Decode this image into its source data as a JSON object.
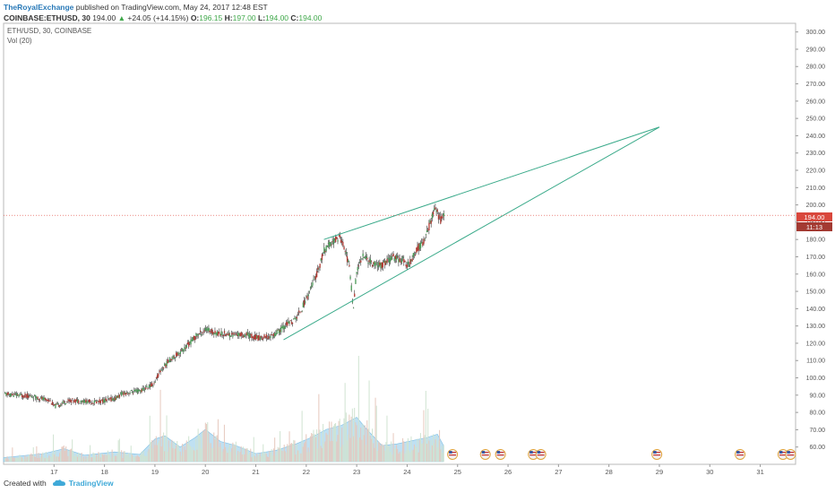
{
  "header": {
    "author": "TheRoyalExchange",
    "published_text": "published on TradingView.com, May 24, 2017 12:48 EST",
    "symbol_line": "COINBASE:ETHUSD, 30",
    "last_price": "194.00",
    "change": "+24.05 (+14.15%)",
    "open_label": "O:",
    "open": "196.15",
    "high_label": "H:",
    "high": "197.00",
    "low_label": "L:",
    "low": "194.00",
    "close_label": "C:",
    "close": "194.00"
  },
  "pane": {
    "series_label": "ETH/USD, 30, COINBASE",
    "volume_label": "Vol (20)"
  },
  "price_marker": {
    "value": "194.00",
    "countdown": "11:13"
  },
  "footer": {
    "created_with": "Created with",
    "brand": "TradingView"
  },
  "colors": {
    "up": "#4a9a55",
    "down": "#b13a33",
    "trend": "#3aaa8a",
    "volume_fill": "#a9d6ee",
    "volume_bar": "#d7b7a3",
    "price_line": "#e0453a"
  },
  "chart_data": {
    "type": "candlestick",
    "symbol": "ETH/USD",
    "interval": "30",
    "exchange": "COINBASE",
    "ylim": [
      50,
      305
    ],
    "y_ticks": [
      60,
      70,
      80,
      90,
      100,
      110,
      120,
      130,
      140,
      150,
      160,
      170,
      180,
      190,
      200,
      210,
      220,
      230,
      240,
      250,
      260,
      270,
      280,
      290,
      300
    ],
    "y_tick_labels": [
      "60.00",
      "70.00",
      "80.00",
      "90.00",
      "100.00",
      "110.00",
      "120.00",
      "130.00",
      "140.00",
      "150.00",
      "160.00",
      "170.00",
      "180.00",
      "190.00",
      "200.00",
      "210.00",
      "220.00",
      "230.00",
      "240.00",
      "250.00",
      "260.00",
      "270.00",
      "280.00",
      "290.00",
      "300.00"
    ],
    "xlim": [
      16.0,
      31.7
    ],
    "x_ticks": [
      17,
      18,
      19,
      20,
      21,
      22,
      23,
      24,
      25,
      26,
      27,
      28,
      29,
      30,
      31
    ],
    "x_tick_labels": [
      "17",
      "18",
      "19",
      "20",
      "21",
      "22",
      "23",
      "24",
      "25",
      "26",
      "27",
      "28",
      "29",
      "30",
      "31"
    ],
    "price_path": [
      [
        16.0,
        90.5
      ],
      [
        16.5,
        89.5
      ],
      [
        16.9,
        87
      ],
      [
        17.0,
        83.5
      ],
      [
        17.3,
        87
      ],
      [
        17.8,
        86
      ],
      [
        18.2,
        88
      ],
      [
        18.35,
        91
      ],
      [
        18.7,
        92.5
      ],
      [
        18.95,
        96
      ],
      [
        19.1,
        104
      ],
      [
        19.3,
        111
      ],
      [
        19.55,
        116
      ],
      [
        19.8,
        124
      ],
      [
        20.0,
        128
      ],
      [
        20.2,
        126
      ],
      [
        20.5,
        125
      ],
      [
        20.8,
        125
      ],
      [
        21.05,
        123
      ],
      [
        21.3,
        124
      ],
      [
        21.45,
        127
      ],
      [
        21.6,
        131
      ],
      [
        21.75,
        133
      ],
      [
        21.9,
        140
      ],
      [
        22.05,
        150
      ],
      [
        22.2,
        160
      ],
      [
        22.35,
        174
      ],
      [
        22.5,
        178
      ],
      [
        22.65,
        182
      ],
      [
        22.75,
        175
      ],
      [
        22.85,
        163
      ],
      [
        22.92,
        140
      ],
      [
        22.98,
        160
      ],
      [
        23.1,
        171
      ],
      [
        23.3,
        166
      ],
      [
        23.5,
        165
      ],
      [
        23.7,
        170
      ],
      [
        23.9,
        168
      ],
      [
        24.0,
        165
      ],
      [
        24.2,
        175
      ],
      [
        24.35,
        180
      ],
      [
        24.45,
        190
      ],
      [
        24.55,
        198
      ],
      [
        24.65,
        191
      ],
      [
        24.72,
        194
      ]
    ],
    "trendlines": [
      {
        "from": [
          22.35,
          180
        ],
        "to": [
          29.0,
          245
        ]
      },
      {
        "from": [
          21.55,
          122
        ],
        "to": [
          29.0,
          245
        ]
      }
    ],
    "last_price": 194.0,
    "volume_path": [
      [
        16.0,
        0.05
      ],
      [
        16.8,
        0.1
      ],
      [
        17.2,
        0.16
      ],
      [
        17.6,
        0.08
      ],
      [
        18.2,
        0.12
      ],
      [
        18.7,
        0.09
      ],
      [
        19.0,
        0.28
      ],
      [
        19.2,
        0.32
      ],
      [
        19.5,
        0.18
      ],
      [
        19.8,
        0.3
      ],
      [
        20.0,
        0.4
      ],
      [
        20.3,
        0.25
      ],
      [
        20.6,
        0.2
      ],
      [
        21.0,
        0.1
      ],
      [
        21.4,
        0.14
      ],
      [
        21.8,
        0.22
      ],
      [
        22.1,
        0.3
      ],
      [
        22.4,
        0.4
      ],
      [
        22.7,
        0.45
      ],
      [
        23.0,
        0.55
      ],
      [
        23.2,
        0.4
      ],
      [
        23.5,
        0.2
      ],
      [
        23.8,
        0.22
      ],
      [
        24.1,
        0.26
      ],
      [
        24.4,
        0.3
      ],
      [
        24.6,
        0.34
      ],
      [
        24.72,
        0.2
      ]
    ],
    "event_markers_x": [
      24.9,
      25.55,
      25.85,
      26.5,
      26.65,
      28.95,
      30.6,
      31.45,
      31.6
    ]
  }
}
